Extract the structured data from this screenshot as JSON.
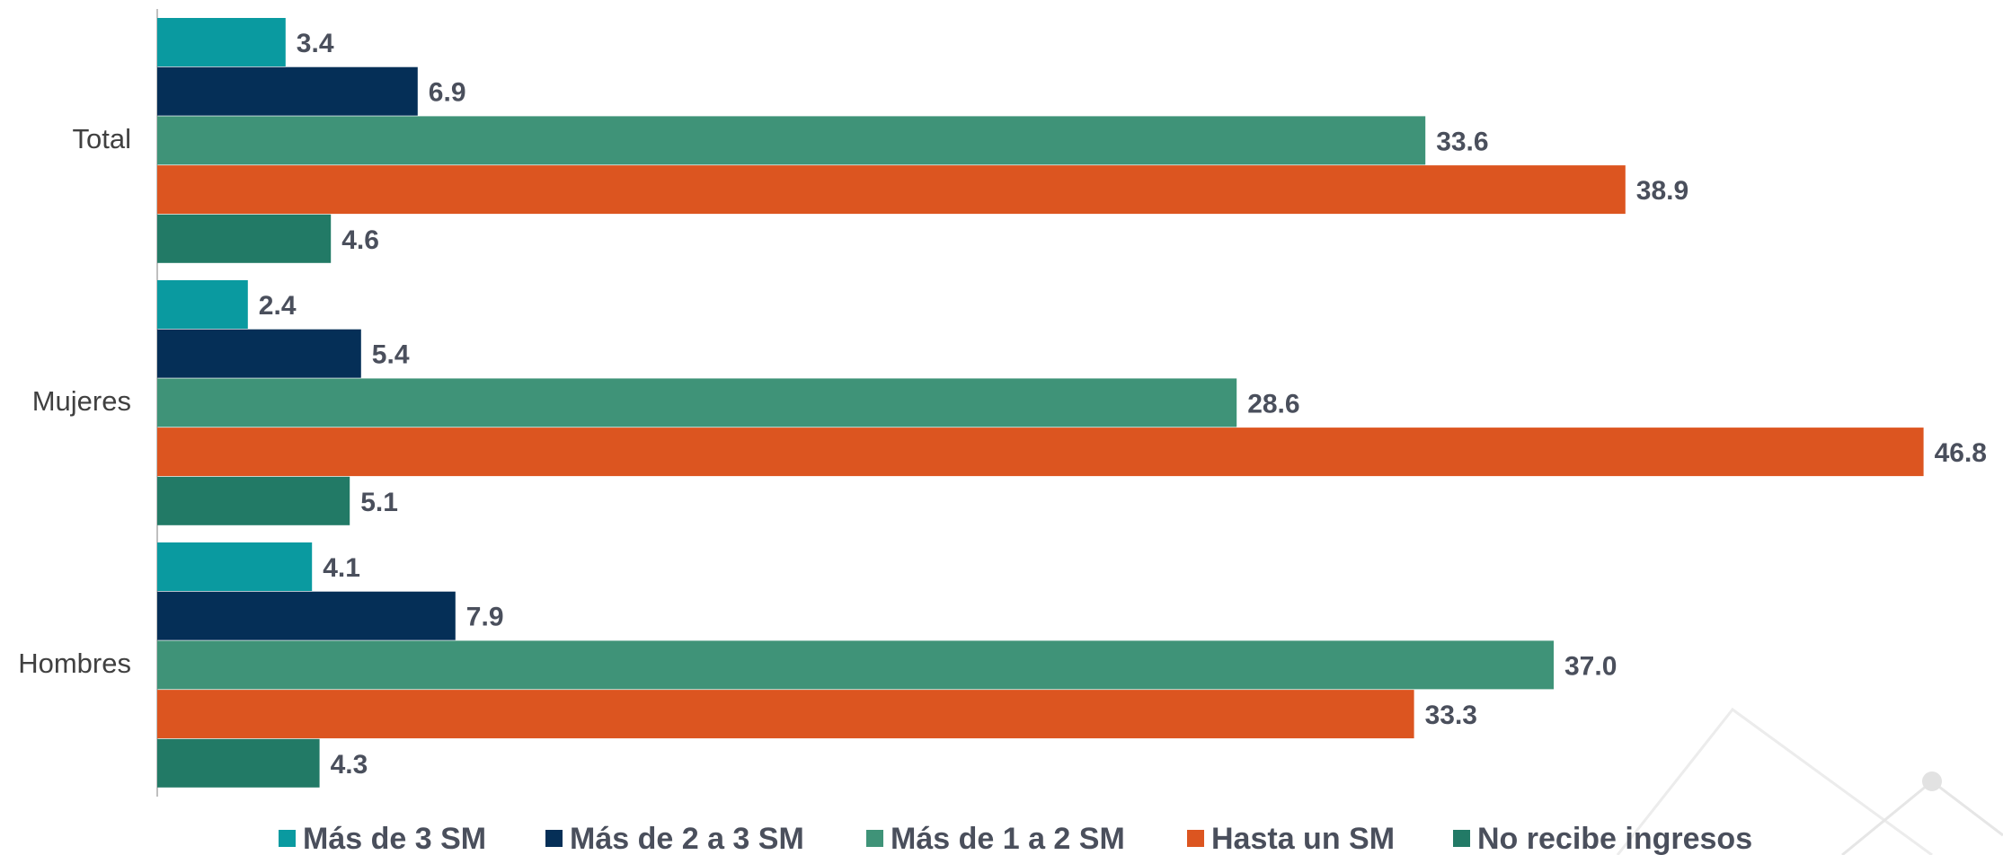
{
  "chart_data": {
    "type": "bar",
    "orientation": "horizontal",
    "categories": [
      "Total",
      "Mujeres",
      "Hombres"
    ],
    "series": [
      {
        "name": "Más de 3 SM",
        "color": "#0a9aa0",
        "values": [
          3.4,
          2.4,
          4.1
        ]
      },
      {
        "name": "Más de 2 a 3 SM",
        "color": "#052f57",
        "values": [
          6.9,
          5.4,
          7.9
        ]
      },
      {
        "name": "Más de 1 a 2 SM",
        "color": "#3f9378",
        "values": [
          33.6,
          28.6,
          37.0
        ]
      },
      {
        "name": "Hasta un SM",
        "color": "#dc5520",
        "values": [
          38.9,
          46.8,
          33.3
        ]
      },
      {
        "name": "No recibe ingresos",
        "color": "#227a66",
        "values": [
          4.6,
          5.1,
          4.3
        ]
      }
    ],
    "value_labels": [
      [
        "3.4",
        "6.9",
        "33.6",
        "38.9",
        "4.6"
      ],
      [
        "2.4",
        "5.4",
        "28.6",
        "46.8",
        "5.1"
      ],
      [
        "4.1",
        "7.9",
        "37.0",
        "33.3",
        "4.3"
      ]
    ],
    "xlim": [
      0,
      47
    ],
    "grid": false,
    "legend_position": "bottom",
    "title": "",
    "xlabel": "",
    "ylabel": ""
  }
}
